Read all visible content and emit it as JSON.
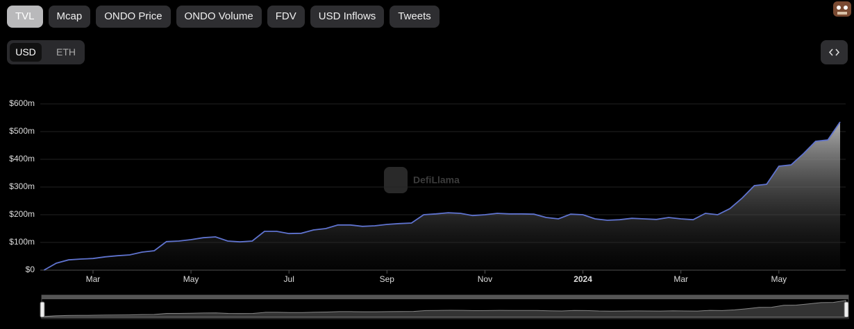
{
  "tabs": [
    "TVL",
    "Mcap",
    "ONDO Price",
    "ONDO Volume",
    "FDV",
    "USD Inflows",
    "Tweets"
  ],
  "toggle": [
    "USD",
    "ETH"
  ],
  "chart_data": {
    "type": "area",
    "watermark": "DefiLlama",
    "categories": [
      null,
      null,
      null,
      null,
      "Mar",
      null,
      null,
      null,
      null,
      null,
      null,
      null,
      "May",
      null,
      null,
      null,
      null,
      null,
      null,
      null,
      "Jul",
      null,
      null,
      null,
      null,
      null,
      null,
      null,
      "Sep",
      null,
      null,
      null,
      null,
      null,
      null,
      null,
      "Nov",
      null,
      null,
      null,
      null,
      null,
      null,
      null,
      "2024",
      null,
      null,
      null,
      null,
      null,
      null,
      null,
      "Mar",
      null,
      null,
      null,
      null,
      null,
      null,
      null,
      "May",
      null,
      null,
      null,
      null,
      null
    ],
    "series": [
      {
        "name": "TVL",
        "color": "#5f73cf",
        "values": [
          0,
          25,
          37,
          40,
          42,
          48,
          52,
          55,
          65,
          70,
          103,
          105,
          110,
          117,
          120,
          105,
          102,
          105,
          140,
          140,
          132,
          133,
          145,
          150,
          163,
          163,
          158,
          160,
          165,
          168,
          170,
          200,
          203,
          207,
          205,
          197,
          200,
          205,
          203,
          203,
          202,
          190,
          185,
          202,
          200,
          185,
          180,
          182,
          187,
          185,
          183,
          190,
          185,
          182,
          205,
          200,
          222,
          260,
          305,
          310,
          375,
          380,
          420,
          465,
          470,
          535
        ]
      }
    ],
    "ylim": [
      0,
      600
    ],
    "yticks": [
      {
        "value": 0,
        "label": "$0"
      },
      {
        "value": 100,
        "label": "$100m"
      },
      {
        "value": 200,
        "label": "$200m"
      },
      {
        "value": 300,
        "label": "$300m"
      },
      {
        "value": 400,
        "label": "$400m"
      },
      {
        "value": 500,
        "label": "$500m"
      },
      {
        "value": 600,
        "label": "$600m"
      }
    ],
    "grid": true
  }
}
